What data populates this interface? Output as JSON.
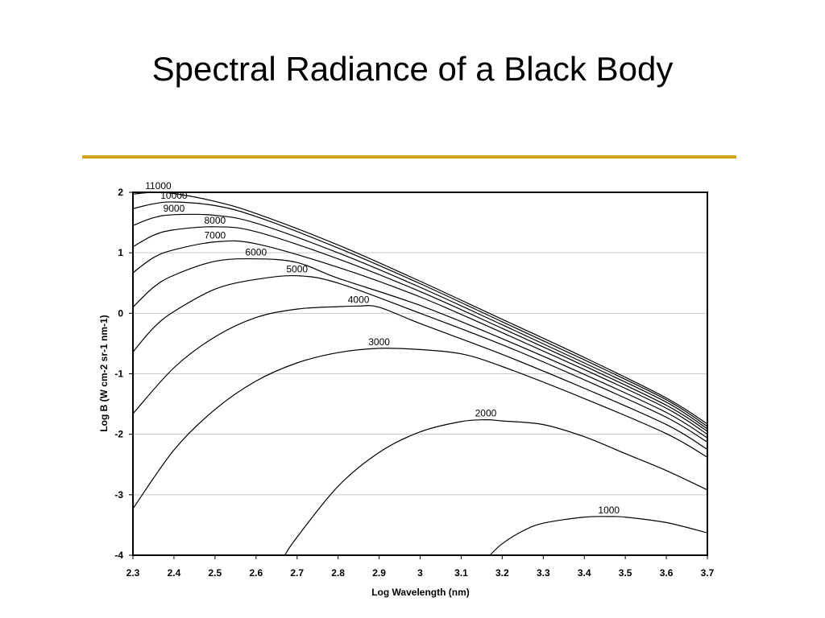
{
  "slide": {
    "title": "Spectral Radiance of a Black Body",
    "rule_color": "#D4A017"
  },
  "chart_data": {
    "type": "line",
    "xlabel": "Log Wavelength (nm)",
    "ylabel": "Log B (W cm-2 sr-1 nm-1)",
    "xlim": [
      2.3,
      3.7
    ],
    "ylim": [
      -4,
      2
    ],
    "xticks": [
      "2.3",
      "2.4",
      "2.5",
      "2.6",
      "2.7",
      "2.8",
      "2.9",
      "3",
      "3.1",
      "3.2",
      "3.3",
      "3.4",
      "3.5",
      "3.6",
      "3.7"
    ],
    "yticks": [
      "2",
      "1",
      "0",
      "-1",
      "-2",
      "-3",
      "-4"
    ],
    "grid": "horizontal",
    "series": [
      {
        "name": "11000",
        "x": [
          2.3,
          2.35,
          2.4,
          2.5,
          2.6,
          2.8,
          3.0,
          3.2,
          3.4,
          3.6,
          3.7
        ],
        "y": [
          1.97,
          2.0,
          1.98,
          1.85,
          1.65,
          1.13,
          0.53,
          -0.1,
          -0.73,
          -1.4,
          -1.83
        ]
      },
      {
        "name": "10000",
        "x": [
          2.3,
          2.35,
          2.4,
          2.5,
          2.6,
          2.8,
          3.0,
          3.2,
          3.4,
          3.6,
          3.7
        ],
        "y": [
          1.73,
          1.81,
          1.84,
          1.78,
          1.6,
          1.08,
          0.49,
          -0.14,
          -0.77,
          -1.43,
          -1.87
        ]
      },
      {
        "name": "9000",
        "x": [
          2.3,
          2.35,
          2.4,
          2.5,
          2.6,
          2.8,
          3.0,
          3.2,
          3.4,
          3.6,
          3.7
        ],
        "y": [
          1.45,
          1.58,
          1.63,
          1.62,
          1.49,
          1.0,
          0.43,
          -0.19,
          -0.82,
          -1.47,
          -1.91
        ]
      },
      {
        "name": "8000",
        "x": [
          2.3,
          2.35,
          2.4,
          2.5,
          2.6,
          2.8,
          3.0,
          3.2,
          3.4,
          3.6,
          3.7
        ],
        "y": [
          1.1,
          1.29,
          1.38,
          1.43,
          1.35,
          0.9,
          0.36,
          -0.25,
          -0.87,
          -1.52,
          -1.95
        ]
      },
      {
        "name": "7000",
        "x": [
          2.3,
          2.35,
          2.4,
          2.5,
          2.6,
          2.8,
          3.0,
          3.2,
          3.4,
          3.6,
          3.7
        ],
        "y": [
          0.67,
          0.92,
          1.05,
          1.18,
          1.15,
          0.76,
          0.27,
          -0.32,
          -0.93,
          -1.57,
          -2.0
        ]
      },
      {
        "name": "6000",
        "x": [
          2.3,
          2.35,
          2.4,
          2.5,
          2.6,
          2.7,
          2.8,
          3.0,
          3.2,
          3.4,
          3.6,
          3.7
        ],
        "y": [
          0.1,
          0.43,
          0.63,
          0.86,
          0.9,
          0.84,
          0.58,
          0.13,
          -0.42,
          -1.01,
          -1.64,
          -2.06
        ]
      },
      {
        "name": "5000",
        "x": [
          2.3,
          2.35,
          2.4,
          2.5,
          2.6,
          2.7,
          2.8,
          3.0,
          3.2,
          3.4,
          3.6,
          3.7
        ],
        "y": [
          -0.64,
          -0.24,
          0.03,
          0.4,
          0.56,
          0.62,
          0.5,
          0.0,
          -0.52,
          -1.1,
          -1.72,
          -2.13
        ]
      },
      {
        "name": "4000",
        "x": [
          2.3,
          2.4,
          2.5,
          2.6,
          2.7,
          2.8,
          2.85,
          2.9,
          3.0,
          3.2,
          3.4,
          3.6,
          3.7
        ],
        "y": [
          -1.66,
          -0.9,
          -0.39,
          -0.07,
          0.07,
          0.11,
          0.12,
          0.1,
          -0.17,
          -0.68,
          -1.24,
          -1.84,
          -2.25
        ]
      },
      {
        "name": "3000",
        "x": [
          2.3,
          2.4,
          2.5,
          2.6,
          2.7,
          2.8,
          2.9,
          3.0,
          3.1,
          3.2,
          3.4,
          3.6,
          3.7
        ],
        "y": [
          -3.23,
          -2.26,
          -1.59,
          -1.12,
          -0.82,
          -0.65,
          -0.58,
          -0.6,
          -0.67,
          -0.88,
          -1.41,
          -1.99,
          -2.38
        ]
      },
      {
        "name": "2000",
        "x": [
          2.67,
          2.7,
          2.8,
          2.9,
          3.0,
          3.1,
          3.16,
          3.2,
          3.3,
          3.4,
          3.5,
          3.6,
          3.7
        ],
        "y": [
          -4.0,
          -3.7,
          -2.86,
          -2.3,
          -1.96,
          -1.79,
          -1.76,
          -1.78,
          -1.84,
          -2.04,
          -2.32,
          -2.6,
          -2.92
        ]
      },
      {
        "name": "1000",
        "x": [
          3.17,
          3.2,
          3.25,
          3.3,
          3.4,
          3.46,
          3.5,
          3.6,
          3.7
        ],
        "y": [
          -4.0,
          -3.81,
          -3.6,
          -3.47,
          -3.37,
          -3.36,
          -3.37,
          -3.46,
          -3.63
        ]
      }
    ]
  }
}
